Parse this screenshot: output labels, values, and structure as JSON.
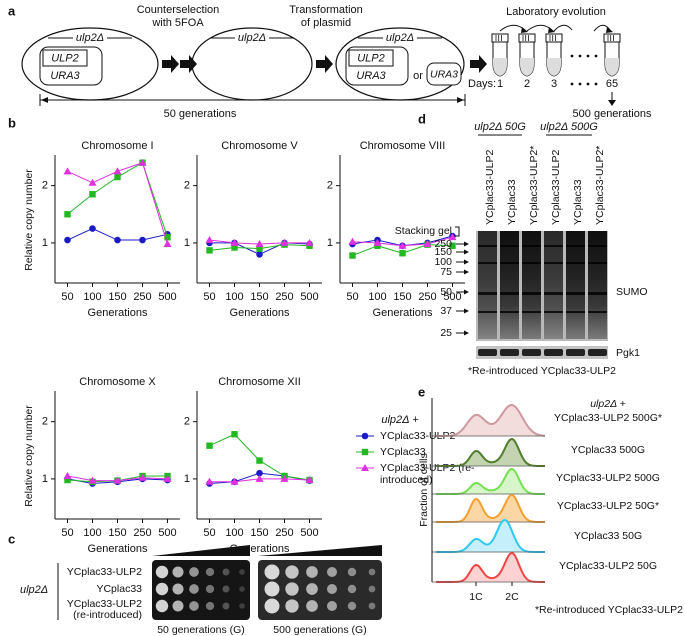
{
  "panel_labels": [
    "a",
    "b",
    "c",
    "d",
    "e"
  ],
  "panel_a": {
    "steps": [
      [
        "Counterselection",
        "with 5FOA"
      ],
      [
        "Transformation",
        "of plasmid"
      ]
    ],
    "cells": [
      {
        "label": "ulp2Δ",
        "genes": [
          "ULP2",
          "URA3"
        ]
      },
      {
        "label": "ulp2Δ"
      },
      {
        "label": "ulp2Δ",
        "genes": [
          "ULP2",
          "URA3"
        ],
        "or": "or",
        "alternative": "URA3"
      }
    ],
    "evolution": "Laboratory evolution",
    "days_label": "Days:",
    "days": [
      "1",
      "2",
      "3",
      "65"
    ],
    "span": "50 generations",
    "final": "500 generations"
  },
  "chart_data": [
    {
      "type": "line",
      "title": "Chromosome I",
      "categories": [
        "50",
        "100",
        "150",
        "250",
        "500"
      ],
      "ylim": [
        0.3,
        2.5
      ],
      "yticks": [
        1,
        2
      ],
      "y_label": "Relative copy number",
      "x_label": "Generations",
      "series": [
        {
          "color": "#1a1ac8",
          "marker": "circle",
          "values": [
            1.05,
            1.25,
            1.05,
            1.05,
            1.15
          ]
        },
        {
          "color": "#22b822",
          "marker": "square",
          "values": [
            1.5,
            1.85,
            2.15,
            2.4,
            1.1
          ]
        },
        {
          "color": "#e030e0",
          "marker": "triangle",
          "values": [
            2.25,
            2.05,
            2.25,
            2.4,
            0.98
          ]
        }
      ]
    },
    {
      "type": "line",
      "title": "Chromosome V",
      "categories": [
        "50",
        "100",
        "150",
        "250",
        "500"
      ],
      "ylim": [
        0.3,
        2.5
      ],
      "yticks": [
        1,
        2
      ],
      "x_label": "Generations",
      "series": [
        {
          "color": "#1a1ac8",
          "marker": "circle",
          "values": [
            1.0,
            1.0,
            0.8,
            1.0,
            0.98
          ]
        },
        {
          "color": "#22b822",
          "marker": "square",
          "values": [
            0.87,
            0.92,
            0.9,
            0.97,
            0.95
          ]
        },
        {
          "color": "#e030e0",
          "marker": "triangle",
          "values": [
            1.05,
            1.0,
            0.98,
            1.0,
            1.0
          ]
        }
      ]
    },
    {
      "type": "line",
      "title": "Chromosome VIII",
      "categories": [
        "50",
        "100",
        "150",
        "250",
        "500"
      ],
      "ylim": [
        0.3,
        2.5
      ],
      "yticks": [
        1,
        2
      ],
      "x_label": "Generations",
      "series": [
        {
          "color": "#1a1ac8",
          "marker": "circle",
          "values": [
            0.98,
            1.05,
            0.95,
            1.0,
            1.12
          ]
        },
        {
          "color": "#22b822",
          "marker": "square",
          "values": [
            0.78,
            0.95,
            0.82,
            0.97,
            0.95
          ]
        },
        {
          "color": "#e030e0",
          "marker": "triangle",
          "values": [
            1.02,
            1.0,
            0.95,
            0.98,
            1.1
          ]
        }
      ]
    },
    {
      "type": "line",
      "title": "Chromosome X",
      "categories": [
        "50",
        "100",
        "150",
        "250",
        "500"
      ],
      "ylim": [
        0.3,
        2.5
      ],
      "yticks": [
        1,
        2
      ],
      "y_label": "Relative copy number",
      "x_label": "Generations",
      "series": [
        {
          "color": "#1a1ac8",
          "marker": "circle",
          "values": [
            1.0,
            0.92,
            0.95,
            1.0,
            0.98
          ]
        },
        {
          "color": "#22b822",
          "marker": "square",
          "values": [
            0.98,
            0.95,
            0.97,
            1.05,
            1.05
          ]
        },
        {
          "color": "#e030e0",
          "marker": "triangle",
          "values": [
            1.05,
            0.97,
            0.97,
            1.02,
            1.0
          ]
        }
      ]
    },
    {
      "type": "line",
      "title": "Chromosome XII",
      "categories": [
        "50",
        "100",
        "150",
        "250",
        "500"
      ],
      "ylim": [
        0.3,
        2.5
      ],
      "yticks": [
        1,
        2
      ],
      "x_label": "Generations",
      "series": [
        {
          "name": "YCplac33-ULP2",
          "color": "#1a1ac8",
          "marker": "circle",
          "values": [
            0.92,
            0.95,
            1.1,
            1.05,
            0.97
          ]
        },
        {
          "name": "YCplac33",
          "color": "#22b822",
          "marker": "square",
          "values": [
            1.58,
            1.78,
            1.32,
            1.05,
            0.98
          ]
        },
        {
          "name": "YCplac33-ULP2 (re-introduced)",
          "color": "#e030e0",
          "marker": "triangle",
          "values": [
            0.95,
            0.95,
            1.0,
            1.0,
            0.98
          ]
        }
      ]
    }
  ],
  "legend_title": "ulp2Δ +",
  "panel_c": {
    "strain": "ulp2Δ",
    "rows": [
      [
        "YCplac33-ULP2"
      ],
      [
        "YCplac33"
      ],
      [
        "YCplac33-ULP2",
        "(re-introduced)"
      ]
    ],
    "plates": [
      "50 generations (G)",
      "500 generations (G)"
    ]
  },
  "panel_d": {
    "groups": [
      "ulp2Δ 50G",
      "ulp2Δ 500G"
    ],
    "lanes": [
      "YCplac33-ULP2",
      "YCplac33",
      "YCplac33-ULP2*",
      "YCplac33-ULP2",
      "YCplac33",
      "YCplac33-ULP2*"
    ],
    "stacking": "Stacking gel",
    "markers": [
      "250",
      "150",
      "100",
      "75",
      "50",
      "37",
      "25"
    ],
    "target": "SUMO",
    "loading": "Pgk1",
    "note": "*Re-introduced YCplac33-ULP2"
  },
  "panel_e": {
    "y_label": "Fraction of cells",
    "header": "ulp2Δ +",
    "tracks": [
      "YCplac33-ULP2 500G*",
      "YCplac33 500G",
      "YCplac33-ULP2 500G",
      "YCplac33-ULP2 50G*",
      "YCplac33 50G",
      "YCplac33-ULP2 50G"
    ],
    "x_labels": [
      "1C",
      "2C"
    ],
    "note": "*Re-introduced YCplac33-ULP2"
  }
}
